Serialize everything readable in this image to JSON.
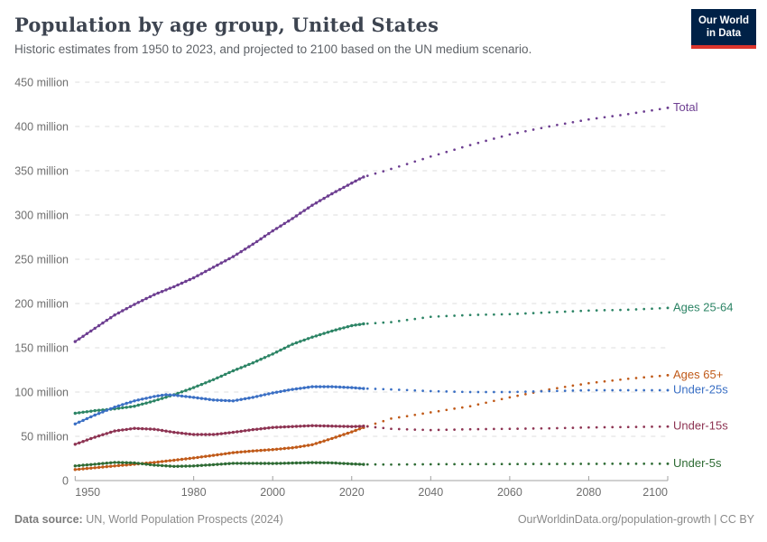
{
  "header": {
    "title": "Population by age group, United States",
    "subtitle": "Historic estimates from 1950 to 2023, and projected to 2100 based on the UN medium scenario.",
    "logo": {
      "line1": "Our World",
      "line2": "in Data",
      "bg_color": "#002147",
      "accent_color": "#DC352C"
    }
  },
  "footer": {
    "source_label": "Data source:",
    "source_text": " UN, World Population Prospects (2024)",
    "credit": "OurWorldinData.org/population-growth | CC BY"
  },
  "chart_data": {
    "type": "line",
    "title": "Population by age group, United States",
    "subtitle": "Historic estimates from 1950 to 2023, and projected to 2100 based on the UN medium scenario.",
    "xlabel": "",
    "ylabel": "",
    "unit": "million people",
    "grid": true,
    "legend_position": "right-edge-labels",
    "xlim": [
      1950,
      2100
    ],
    "ylim": [
      0,
      450
    ],
    "x_ticks": [
      1950,
      1980,
      2000,
      2020,
      2040,
      2060,
      2080,
      2100
    ],
    "y_ticks": [
      {
        "value": 0,
        "label": "0"
      },
      {
        "value": 50,
        "label": "50 million"
      },
      {
        "value": 100,
        "label": "100 million"
      },
      {
        "value": 150,
        "label": "150 million"
      },
      {
        "value": 200,
        "label": "200 million"
      },
      {
        "value": 250,
        "label": "250 million"
      },
      {
        "value": 300,
        "label": "300 million"
      },
      {
        "value": 350,
        "label": "350 million"
      },
      {
        "value": 400,
        "label": "400 million"
      },
      {
        "value": 450,
        "label": "450 million"
      }
    ],
    "projection_start": 2023,
    "series": [
      {
        "name": "Total",
        "slug": "total",
        "color": "#6D3E91",
        "points": [
          [
            1950,
            157
          ],
          [
            1955,
            172
          ],
          [
            1960,
            187
          ],
          [
            1965,
            199
          ],
          [
            1970,
            210
          ],
          [
            1975,
            219
          ],
          [
            1980,
            229
          ],
          [
            1985,
            241
          ],
          [
            1990,
            253
          ],
          [
            1995,
            267
          ],
          [
            2000,
            282
          ],
          [
            2005,
            296
          ],
          [
            2010,
            311
          ],
          [
            2015,
            324
          ],
          [
            2020,
            336
          ],
          [
            2023,
            343
          ],
          [
            2030,
            352
          ],
          [
            2040,
            366
          ],
          [
            2050,
            379
          ],
          [
            2060,
            391
          ],
          [
            2070,
            400
          ],
          [
            2080,
            408
          ],
          [
            2090,
            414
          ],
          [
            2100,
            421
          ]
        ]
      },
      {
        "name": "Ages 25-64",
        "slug": "ages-25-64",
        "color": "#2C8465",
        "points": [
          [
            1950,
            76
          ],
          [
            1955,
            79
          ],
          [
            1960,
            81
          ],
          [
            1965,
            84
          ],
          [
            1970,
            90
          ],
          [
            1975,
            97
          ],
          [
            1980,
            105
          ],
          [
            1985,
            114
          ],
          [
            1990,
            124
          ],
          [
            1995,
            133
          ],
          [
            2000,
            143
          ],
          [
            2005,
            154
          ],
          [
            2010,
            162
          ],
          [
            2015,
            169
          ],
          [
            2020,
            175
          ],
          [
            2023,
            177
          ],
          [
            2030,
            179
          ],
          [
            2040,
            185
          ],
          [
            2050,
            187
          ],
          [
            2060,
            188
          ],
          [
            2070,
            190
          ],
          [
            2080,
            192
          ],
          [
            2090,
            193
          ],
          [
            2100,
            195
          ]
        ]
      },
      {
        "name": "Ages 65+",
        "slug": "ages-65-plus",
        "color": "#C05A19",
        "points": [
          [
            1950,
            12.5
          ],
          [
            1955,
            14.5
          ],
          [
            1960,
            16.5
          ],
          [
            1965,
            18.5
          ],
          [
            1970,
            20.5
          ],
          [
            1975,
            23
          ],
          [
            1980,
            25.5
          ],
          [
            1985,
            28.5
          ],
          [
            1990,
            31.5
          ],
          [
            1995,
            33.5
          ],
          [
            2000,
            35
          ],
          [
            2005,
            37
          ],
          [
            2010,
            40.5
          ],
          [
            2015,
            47.5
          ],
          [
            2020,
            55
          ],
          [
            2023,
            60
          ],
          [
            2030,
            70
          ],
          [
            2040,
            77
          ],
          [
            2050,
            84
          ],
          [
            2060,
            94
          ],
          [
            2070,
            103
          ],
          [
            2080,
            110
          ],
          [
            2090,
            115
          ],
          [
            2100,
            119
          ]
        ]
      },
      {
        "name": "Under-25s",
        "slug": "under-25s",
        "color": "#3A6FC4",
        "points": [
          [
            1950,
            64
          ],
          [
            1955,
            74
          ],
          [
            1960,
            83
          ],
          [
            1965,
            90
          ],
          [
            1970,
            95
          ],
          [
            1973,
            97
          ],
          [
            1975,
            96.5
          ],
          [
            1980,
            94
          ],
          [
            1985,
            91
          ],
          [
            1990,
            90
          ],
          [
            1995,
            94
          ],
          [
            2000,
            99
          ],
          [
            2005,
            103
          ],
          [
            2010,
            106
          ],
          [
            2015,
            106
          ],
          [
            2020,
            105
          ],
          [
            2023,
            104
          ],
          [
            2030,
            103
          ],
          [
            2040,
            101
          ],
          [
            2050,
            100
          ],
          [
            2060,
            100
          ],
          [
            2070,
            101
          ],
          [
            2080,
            102
          ],
          [
            2090,
            102
          ],
          [
            2100,
            102
          ]
        ]
      },
      {
        "name": "Under-15s",
        "slug": "under-15s",
        "color": "#8D3352",
        "points": [
          [
            1950,
            41
          ],
          [
            1955,
            49
          ],
          [
            1960,
            56
          ],
          [
            1965,
            59
          ],
          [
            1970,
            58
          ],
          [
            1975,
            54.5
          ],
          [
            1980,
            52
          ],
          [
            1985,
            52
          ],
          [
            1990,
            54.5
          ],
          [
            1995,
            57.5
          ],
          [
            2000,
            60
          ],
          [
            2005,
            61
          ],
          [
            2010,
            62
          ],
          [
            2015,
            61.5
          ],
          [
            2020,
            61
          ],
          [
            2023,
            61.5
          ],
          [
            2030,
            58.5
          ],
          [
            2040,
            57
          ],
          [
            2050,
            58
          ],
          [
            2060,
            58.5
          ],
          [
            2070,
            59
          ],
          [
            2080,
            60
          ],
          [
            2090,
            60.5
          ],
          [
            2100,
            61
          ]
        ]
      },
      {
        "name": "Under-5s",
        "slug": "under-5s",
        "color": "#2E6B34",
        "points": [
          [
            1950,
            16.5
          ],
          [
            1955,
            18.5
          ],
          [
            1960,
            20.5
          ],
          [
            1965,
            20
          ],
          [
            1970,
            17.5
          ],
          [
            1975,
            16
          ],
          [
            1980,
            16.5
          ],
          [
            1985,
            18
          ],
          [
            1990,
            19.5
          ],
          [
            1995,
            19.5
          ],
          [
            2000,
            19.3
          ],
          [
            2005,
            19.8
          ],
          [
            2010,
            20.3
          ],
          [
            2015,
            20
          ],
          [
            2020,
            18.8
          ],
          [
            2023,
            18.3
          ],
          [
            2030,
            18.1
          ],
          [
            2040,
            18.4
          ],
          [
            2050,
            18.6
          ],
          [
            2060,
            18.7
          ],
          [
            2070,
            18.8
          ],
          [
            2080,
            18.9
          ],
          [
            2090,
            19
          ],
          [
            2100,
            19
          ]
        ]
      }
    ]
  }
}
